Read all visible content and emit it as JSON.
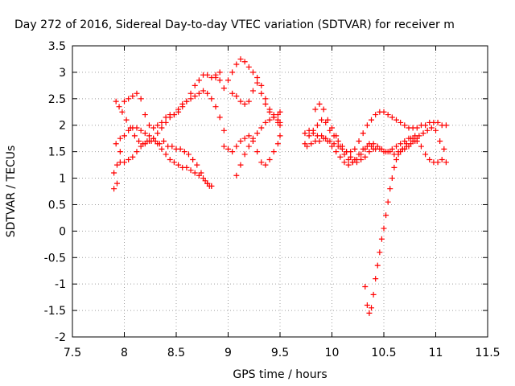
{
  "chart_data": {
    "type": "scatter",
    "title": "Day 272 of 2016, Sidereal Day-to-day VTEC variation (SDTVAR) for receiver m",
    "xlabel": "GPS time / hours",
    "ylabel": "SDTVAR / TECUs",
    "xlim": [
      7.5,
      11.5
    ],
    "ylim": [
      -2,
      3.5
    ],
    "xticks": [
      "7.5",
      "8",
      "8.5",
      "9",
      "9.5",
      "10",
      "10.5",
      "11",
      "11.5"
    ],
    "yticks": [
      "-2",
      "-1.5",
      "-1",
      "-0.5",
      "0",
      "0.5",
      "1",
      "1.5",
      "2",
      "2.5",
      "3",
      "3.5"
    ],
    "grid": true,
    "legend": "none",
    "marker": "plus",
    "color": "#ff0000",
    "series": [
      {
        "x": [
          7.92,
          7.96,
          8.0,
          8.04,
          8.08,
          8.12,
          8.16,
          8.2,
          8.24,
          8.28,
          8.32,
          8.36,
          8.4,
          8.44,
          8.48,
          8.52,
          8.56,
          8.6,
          8.64,
          8.68,
          8.72,
          8.76,
          8.8,
          8.84
        ],
        "y": [
          1.65,
          1.75,
          1.8,
          1.9,
          1.95,
          1.95,
          1.9,
          1.85,
          1.8,
          1.75,
          1.65,
          1.55,
          1.45,
          1.35,
          1.3,
          1.25,
          1.2,
          1.2,
          1.15,
          1.1,
          1.05,
          1.0,
          0.9,
          0.85
        ]
      },
      {
        "x": [
          7.92,
          7.95,
          7.98,
          8.02,
          8.06,
          8.1,
          8.14,
          8.18,
          8.22,
          8.26,
          8.3,
          8.34,
          8.38,
          8.42,
          8.46,
          8.5,
          8.54,
          8.58,
          8.62,
          8.66,
          8.7,
          8.74,
          8.78,
          8.8,
          8.82,
          8.84
        ],
        "y": [
          2.45,
          2.35,
          2.25,
          2.1,
          1.95,
          1.8,
          1.7,
          1.65,
          1.7,
          1.7,
          1.7,
          1.65,
          1.7,
          1.6,
          1.6,
          1.55,
          1.55,
          1.5,
          1.45,
          1.35,
          1.25,
          1.1,
          0.95,
          0.9,
          0.85,
          0.85
        ]
      },
      {
        "x": [
          7.9,
          7.93,
          7.96,
          8.0,
          8.04,
          8.08,
          8.12,
          8.16,
          8.2,
          8.24,
          8.28,
          8.32,
          8.36,
          8.4,
          8.44,
          8.48,
          8.52,
          8.56,
          8.6,
          8.64,
          8.68,
          8.72,
          8.76,
          8.8,
          8.84,
          8.88,
          8.92,
          8.96
        ],
        "y": [
          1.1,
          1.25,
          1.3,
          1.3,
          1.35,
          1.4,
          1.5,
          1.6,
          1.65,
          1.7,
          1.75,
          1.85,
          1.95,
          2.05,
          2.15,
          2.2,
          2.3,
          2.4,
          2.45,
          2.5,
          2.55,
          2.6,
          2.65,
          2.6,
          2.5,
          2.35,
          2.15,
          1.9
        ]
      },
      {
        "x": [
          7.9,
          7.93,
          7.96,
          8.0,
          8.04,
          8.08,
          8.12,
          8.16,
          8.2,
          8.24,
          8.28,
          8.32,
          8.36,
          8.4,
          8.44,
          8.48,
          8.52,
          8.56,
          8.6,
          8.64,
          8.68,
          8.72,
          8.76,
          8.8,
          8.84,
          8.88,
          8.92
        ],
        "y": [
          0.8,
          0.9,
          1.5,
          2.45,
          2.5,
          2.55,
          2.6,
          2.5,
          2.2,
          2.0,
          1.95,
          2.0,
          2.05,
          2.15,
          2.2,
          2.2,
          2.25,
          2.35,
          2.45,
          2.6,
          2.75,
          2.85,
          2.95,
          2.95,
          2.9,
          2.9,
          3.0
        ]
      },
      {
        "x": [
          8.88,
          8.92,
          8.96,
          9.0,
          9.04,
          9.08,
          9.12,
          9.16,
          9.2,
          9.24,
          9.28,
          9.32,
          9.36,
          9.4,
          9.44,
          9.48,
          9.5
        ],
        "y": [
          2.95,
          2.85,
          2.7,
          2.85,
          3.0,
          3.15,
          3.25,
          3.2,
          3.1,
          3.0,
          2.8,
          2.6,
          2.4,
          2.25,
          2.15,
          2.05,
          2.0
        ]
      },
      {
        "x": [
          8.96,
          9.0,
          9.04,
          9.08,
          9.12,
          9.16,
          9.2,
          9.24,
          9.28,
          9.32,
          9.36,
          9.4,
          9.44,
          9.48,
          9.5
        ],
        "y": [
          1.6,
          1.55,
          1.5,
          1.6,
          1.7,
          1.75,
          1.8,
          1.7,
          1.5,
          1.3,
          1.25,
          1.35,
          1.5,
          1.65,
          1.8
        ]
      },
      {
        "x": [
          9.04,
          9.08,
          9.12,
          9.16,
          9.2,
          9.24,
          9.28,
          9.32,
          9.36,
          9.4,
          9.44,
          9.48,
          9.5
        ],
        "y": [
          2.6,
          2.55,
          2.45,
          2.4,
          2.45,
          2.65,
          2.9,
          2.75,
          2.5,
          2.3,
          2.2,
          2.2,
          2.25
        ]
      },
      {
        "x": [
          9.08,
          9.12,
          9.16,
          9.2,
          9.24,
          9.28,
          9.32,
          9.36,
          9.4,
          9.44,
          9.48,
          9.5
        ],
        "y": [
          1.05,
          1.25,
          1.45,
          1.6,
          1.75,
          1.85,
          1.95,
          2.05,
          2.1,
          2.15,
          2.1,
          2.05
        ]
      },
      {
        "x": [
          9.74,
          9.78,
          9.82,
          9.86,
          9.9,
          9.94,
          9.98,
          10.02,
          10.06,
          10.1,
          10.14,
          10.18,
          10.22,
          10.26,
          10.3,
          10.34,
          10.38,
          10.42,
          10.46,
          10.5,
          10.54,
          10.58,
          10.62,
          10.66,
          10.7,
          10.74,
          10.78,
          10.82,
          10.86,
          10.9,
          10.94,
          10.98,
          11.02,
          11.06,
          11.1
        ],
        "y": [
          1.85,
          1.9,
          1.85,
          1.8,
          1.8,
          1.75,
          1.7,
          1.65,
          1.6,
          1.55,
          1.5,
          1.5,
          1.55,
          1.7,
          1.85,
          2.0,
          2.1,
          2.2,
          2.25,
          2.25,
          2.2,
          2.15,
          2.1,
          2.05,
          2.0,
          1.95,
          1.95,
          1.95,
          2.0,
          2.0,
          2.05,
          2.05,
          2.05,
          2.0,
          2.0
        ]
      },
      {
        "x": [
          9.74,
          9.78,
          9.82,
          9.86,
          9.9,
          9.94,
          9.98,
          10.02,
          10.06,
          10.1,
          10.14,
          10.18,
          10.22,
          10.26,
          10.3,
          10.34,
          10.38,
          10.42,
          10.46,
          10.5,
          10.54,
          10.58,
          10.62,
          10.66,
          10.7,
          10.74,
          10.78,
          10.82,
          10.86,
          10.9,
          10.94,
          10.98,
          11.02,
          11.06,
          11.1
        ],
        "y": [
          1.65,
          1.8,
          1.9,
          2.0,
          2.1,
          2.05,
          1.9,
          1.8,
          1.7,
          1.6,
          1.5,
          1.4,
          1.35,
          1.45,
          1.55,
          1.6,
          1.6,
          1.55,
          1.55,
          1.5,
          1.5,
          1.55,
          1.6,
          1.65,
          1.7,
          1.75,
          1.75,
          1.7,
          1.6,
          1.45,
          1.35,
          1.3,
          1.3,
          1.35,
          1.3
        ]
      },
      {
        "x": [
          9.76,
          9.8,
          9.84,
          9.88,
          9.92,
          9.96,
          10.0,
          10.04,
          10.08,
          10.12,
          10.16,
          10.2,
          10.24,
          10.28,
          10.32,
          10.36,
          10.4,
          10.44,
          10.48,
          10.52,
          10.56,
          10.6,
          10.64,
          10.68,
          10.72,
          10.76,
          10.8,
          10.84,
          10.88,
          10.92,
          10.96,
          11.0,
          11.04,
          11.08
        ],
        "y": [
          1.6,
          1.65,
          1.7,
          1.7,
          1.75,
          1.7,
          1.6,
          1.5,
          1.4,
          1.3,
          1.25,
          1.3,
          1.35,
          1.45,
          1.55,
          1.65,
          1.65,
          1.6,
          1.55,
          1.5,
          1.5,
          1.45,
          1.5,
          1.55,
          1.65,
          1.75,
          1.8,
          1.8,
          1.85,
          1.9,
          1.95,
          1.9,
          1.7,
          1.55
        ]
      },
      {
        "x": [
          9.84,
          9.88,
          9.92,
          9.96,
          10.0,
          10.04,
          10.08,
          10.12,
          10.16,
          10.2,
          10.24,
          10.28,
          10.32,
          10.36,
          10.4
        ],
        "y": [
          2.3,
          2.4,
          2.3,
          2.1,
          1.95,
          1.8,
          1.6,
          1.45,
          1.35,
          1.3,
          1.3,
          1.35,
          1.4,
          1.5,
          1.55
        ]
      },
      {
        "x": [
          10.32,
          10.34,
          10.36,
          10.38,
          10.4,
          10.42,
          10.44,
          10.46,
          10.48,
          10.5,
          10.52,
          10.54,
          10.56,
          10.58,
          10.6,
          10.62,
          10.64,
          10.66,
          10.68,
          10.7,
          10.72,
          10.74,
          10.76,
          10.78,
          10.8,
          10.82
        ],
        "y": [
          -1.05,
          -1.4,
          -1.55,
          -1.45,
          -1.2,
          -0.9,
          -0.65,
          -0.4,
          -0.15,
          0.05,
          0.3,
          0.55,
          0.8,
          1.0,
          1.2,
          1.35,
          1.45,
          1.5,
          1.55,
          1.55,
          1.6,
          1.6,
          1.65,
          1.7,
          1.7,
          1.75
        ]
      }
    ]
  }
}
